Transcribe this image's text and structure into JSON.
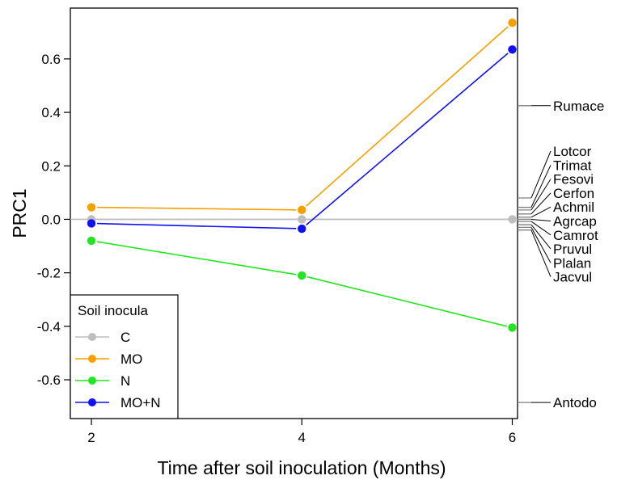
{
  "chart_data": {
    "type": "line",
    "xlabel": "Time after soil inoculation (Months)",
    "ylabel": "PRC1",
    "x": [
      2,
      4,
      6
    ],
    "xlim": [
      1.8,
      6.05
    ],
    "ylim": [
      -0.745,
      0.79
    ],
    "xticks": [
      "2",
      "4",
      "6"
    ],
    "yticks": [
      "-0.6",
      "-0.4",
      "-0.2",
      "0.0",
      "0.2",
      "0.4",
      "0.6"
    ],
    "ytick_values": [
      -0.6,
      -0.4,
      -0.2,
      0.0,
      0.2,
      0.4,
      0.6
    ],
    "series": [
      {
        "name": "C",
        "color": "#bebebe",
        "values": [
          0,
          0,
          0
        ]
      },
      {
        "name": "MO",
        "color": "#f5a000",
        "values": [
          0.045,
          0.035,
          0.735
        ]
      },
      {
        "name": "N",
        "color": "#22e622",
        "values": [
          -0.08,
          -0.21,
          -0.405
        ]
      },
      {
        "name": "MO+N",
        "color": "#1010f5",
        "values": [
          -0.015,
          -0.035,
          0.635
        ]
      }
    ],
    "legend": {
      "title": "Soil inocula",
      "position": "bottom-left"
    },
    "species": [
      {
        "name": "Rumace",
        "score": 0.425
      },
      {
        "name": "Lotcor",
        "score": 0.08
      },
      {
        "name": "Trimat",
        "score": 0.045
      },
      {
        "name": "Fesovi",
        "score": 0.035
      },
      {
        "name": "Cerfon",
        "score": 0.02
      },
      {
        "name": "Achmil",
        "score": 0.008
      },
      {
        "name": "Agrcap",
        "score": 0.0
      },
      {
        "name": "Camrot",
        "score": -0.008
      },
      {
        "name": "Pruvul",
        "score": -0.02
      },
      {
        "name": "Plalan",
        "score": -0.03
      },
      {
        "name": "Jacvul",
        "score": -0.04
      },
      {
        "name": "Antodo",
        "score": -0.685
      }
    ],
    "grid": false
  }
}
